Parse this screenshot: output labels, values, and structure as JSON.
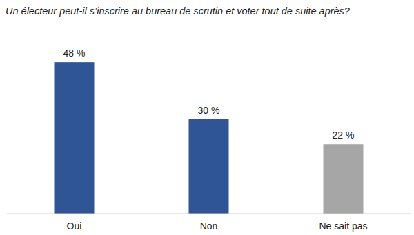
{
  "chart_data": {
    "type": "bar",
    "title": "Un électeur peut-il s’inscrire au bureau de scrutin et voter tout de suite après?",
    "categories": [
      "Oui",
      "Non",
      "Ne sait pas"
    ],
    "values": [
      48,
      30,
      22
    ],
    "value_labels": [
      "48 %",
      "30 %",
      "22 %"
    ],
    "colors": [
      "#2f5597",
      "#2f5597",
      "#a6a6a6"
    ],
    "ylim": [
      0,
      50
    ],
    "data_labels": true,
    "tick_labels": "x",
    "grid": false
  }
}
